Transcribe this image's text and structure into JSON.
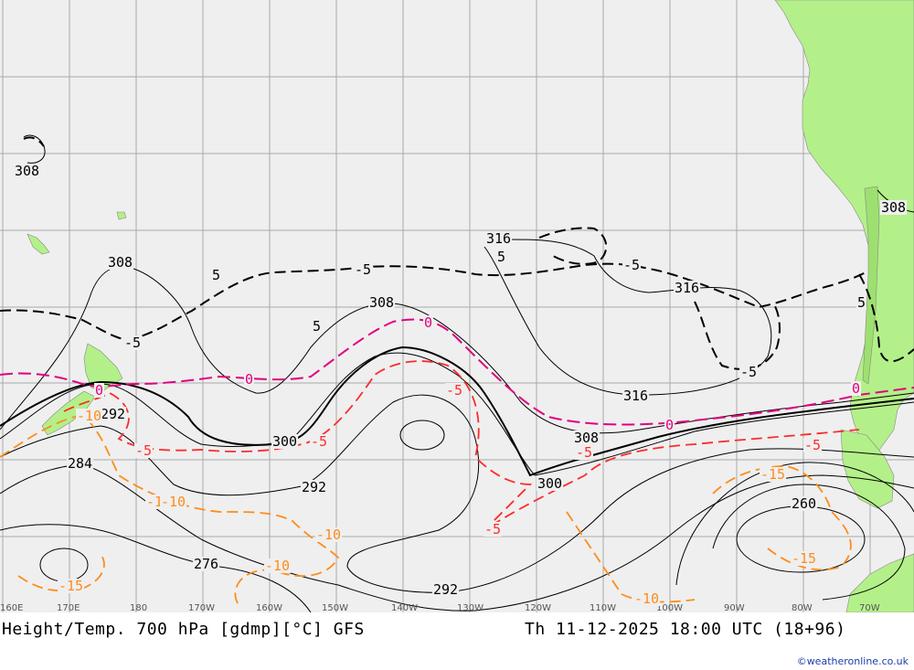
{
  "title": "Height/Temp. 700 hPa [gdmp][°C] GFS",
  "valid_time": "Th 11-12-2025 18:00 UTC (18+96)",
  "credit": "©weatheronline.co.uk",
  "longitude_labels": [
    "160E",
    "170E",
    "180",
    "170W",
    "160W",
    "150W",
    "140W",
    "130W",
    "120W",
    "110W",
    "100W",
    "90W",
    "80W",
    "70W"
  ],
  "height_labels": [
    "308",
    "308",
    "308",
    "316",
    "316",
    "316",
    "308",
    "300",
    "292",
    "300",
    "284",
    "292",
    "276",
    "292",
    "260",
    "308"
  ],
  "temperature_labels": [
    "-5",
    "5",
    "-5",
    "5",
    "5",
    "5",
    "-5",
    "-5",
    "0",
    "0",
    "0",
    "0",
    "-5",
    "-10",
    "-5",
    "-5",
    "-10",
    "-10",
    "-10",
    "-15",
    "-10",
    "-15",
    "-15",
    "-5",
    "0",
    "-5",
    "-10",
    "-5"
  ],
  "colors": {
    "land": "#b4f08a",
    "sea": "#efefef",
    "grid": "#aaaaaa",
    "height_contour": "#000000",
    "temp_0": "#e0007f",
    "temp_neg5": "#ff2a2a",
    "temp_neg10": "#ff8c1a",
    "temp_pos5": "#000000"
  }
}
